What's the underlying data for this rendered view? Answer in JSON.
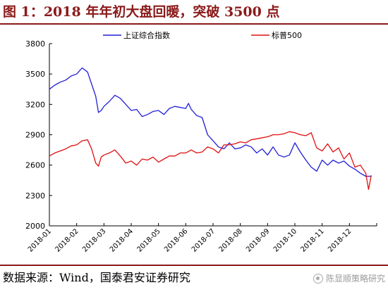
{
  "figure_title": "图 1：2018 年年初大盘回暖，突破 3500 点",
  "source_text": "数据来源：Wind，国泰君安证券研究",
  "watermark_text": "陈显顺策略研究",
  "watermark_icon": "wechat-icon",
  "chart_data": {
    "type": "line",
    "title": "",
    "xlabel": "",
    "ylabel": "",
    "ylim": [
      2000,
      3800
    ],
    "yticks": [
      2000,
      2300,
      2600,
      2900,
      3200,
      3500,
      3800
    ],
    "xticks": [
      "2018-01",
      "2018-02",
      "2018-03",
      "2018-04",
      "2018-05",
      "2018-06",
      "2018-07",
      "2018-08",
      "2018-09",
      "2018-10",
      "2018-11",
      "2018-12"
    ],
    "legend_position": "top",
    "grid": false,
    "series": [
      {
        "name": "上证综合指数",
        "color": "#1f1fd6",
        "x": [
          0,
          0.2,
          0.4,
          0.6,
          0.8,
          1.0,
          1.2,
          1.4,
          1.55,
          1.7,
          1.8,
          1.9,
          2.0,
          2.2,
          2.4,
          2.6,
          2.8,
          3.0,
          3.2,
          3.4,
          3.6,
          3.8,
          4.0,
          4.2,
          4.4,
          4.6,
          4.8,
          5.0,
          5.1,
          5.2,
          5.4,
          5.6,
          5.8,
          6.0,
          6.2,
          6.4,
          6.6,
          6.8,
          7.0,
          7.2,
          7.4,
          7.6,
          7.8,
          8.0,
          8.2,
          8.4,
          8.6,
          8.8,
          9.0,
          9.2,
          9.4,
          9.6,
          9.8,
          10.0,
          10.2,
          10.4,
          10.6,
          10.8,
          11.0,
          11.2,
          11.4,
          11.6,
          11.8
        ],
        "values": [
          3350,
          3390,
          3420,
          3440,
          3480,
          3500,
          3560,
          3520,
          3400,
          3280,
          3120,
          3140,
          3180,
          3230,
          3290,
          3260,
          3200,
          3140,
          3150,
          3080,
          3100,
          3130,
          3140,
          3100,
          3160,
          3180,
          3170,
          3160,
          3210,
          3150,
          3090,
          3070,
          2900,
          2840,
          2780,
          2760,
          2820,
          2760,
          2770,
          2800,
          2780,
          2720,
          2760,
          2700,
          2780,
          2700,
          2680,
          2700,
          2820,
          2730,
          2650,
          2580,
          2540,
          2650,
          2600,
          2650,
          2620,
          2640,
          2590,
          2560,
          2520,
          2490,
          2490
        ]
      },
      {
        "name": "标普500",
        "color": "#e01010",
        "x": [
          0,
          0.2,
          0.4,
          0.6,
          0.8,
          1.0,
          1.2,
          1.4,
          1.55,
          1.7,
          1.8,
          1.9,
          2.0,
          2.2,
          2.4,
          2.6,
          2.8,
          3.0,
          3.2,
          3.4,
          3.6,
          3.8,
          4.0,
          4.2,
          4.4,
          4.6,
          4.8,
          5.0,
          5.2,
          5.4,
          5.6,
          5.8,
          6.0,
          6.2,
          6.4,
          6.6,
          6.8,
          7.0,
          7.2,
          7.4,
          7.6,
          7.8,
          8.0,
          8.2,
          8.4,
          8.6,
          8.8,
          9.0,
          9.2,
          9.4,
          9.6,
          9.8,
          10.0,
          10.2,
          10.4,
          10.6,
          10.8,
          11.0,
          11.2,
          11.4,
          11.6,
          11.7,
          11.8
        ],
        "values": [
          2690,
          2720,
          2740,
          2760,
          2790,
          2800,
          2840,
          2850,
          2760,
          2620,
          2590,
          2680,
          2700,
          2720,
          2750,
          2690,
          2620,
          2640,
          2600,
          2660,
          2650,
          2680,
          2630,
          2660,
          2690,
          2690,
          2720,
          2720,
          2750,
          2720,
          2730,
          2780,
          2760,
          2720,
          2800,
          2800,
          2810,
          2830,
          2820,
          2850,
          2860,
          2870,
          2880,
          2900,
          2900,
          2910,
          2930,
          2920,
          2900,
          2890,
          2920,
          2770,
          2740,
          2810,
          2730,
          2770,
          2660,
          2720,
          2580,
          2600,
          2520,
          2360,
          2500
        ]
      }
    ]
  }
}
